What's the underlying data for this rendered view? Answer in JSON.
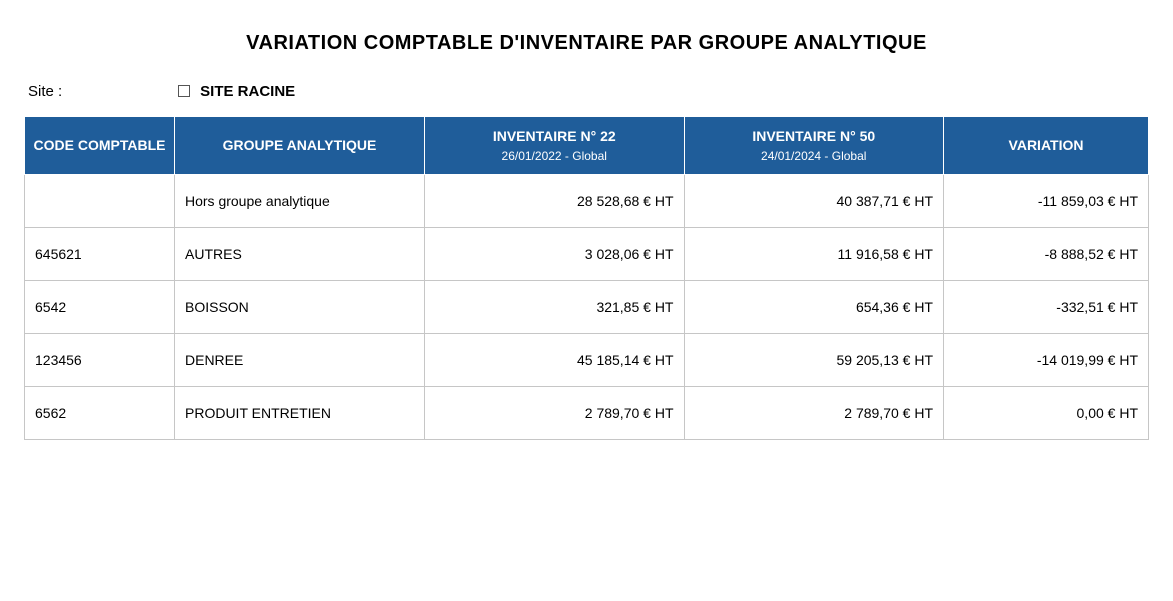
{
  "title": "VARIATION COMPTABLE D'INVENTAIRE PAR GROUPE ANALYTIQUE",
  "site": {
    "label": "Site :",
    "value": "SITE RACINE"
  },
  "columns": {
    "code": {
      "label": "CODE COMPTABLE"
    },
    "group": {
      "label": "GROUPE ANALYTIQUE"
    },
    "inv1": {
      "label": "INVENTAIRE N° 22",
      "sub": "26/01/2022 - Global"
    },
    "inv2": {
      "label": "INVENTAIRE N° 50",
      "sub": "24/01/2024 - Global"
    },
    "var": {
      "label": "VARIATION"
    }
  },
  "rows": [
    {
      "code": "",
      "group": "Hors groupe analytique",
      "inv1": "28 528,68 € HT",
      "inv2": "40 387,71 € HT",
      "var": "-11 859,03 € HT"
    },
    {
      "code": "645621",
      "group": "AUTRES",
      "inv1": "3 028,06 € HT",
      "inv2": "11 916,58 € HT",
      "var": "-8 888,52 € HT"
    },
    {
      "code": "6542",
      "group": "BOISSON",
      "inv1": "321,85 € HT",
      "inv2": "654,36 € HT",
      "var": "-332,51 € HT"
    },
    {
      "code": "123456",
      "group": "DENREE",
      "inv1": "45 185,14 € HT",
      "inv2": "59 205,13 € HT",
      "var": "-14 019,99 € HT"
    },
    {
      "code": "6562",
      "group": "PRODUIT ENTRETIEN",
      "inv1": "2 789,70 € HT",
      "inv2": "2 789,70 € HT",
      "var": "0,00 € HT"
    }
  ],
  "style": {
    "header_bg": "#1f5d9a",
    "header_fg": "#ffffff",
    "border_color": "#c6c6c6",
    "font_family": "Verdana"
  }
}
